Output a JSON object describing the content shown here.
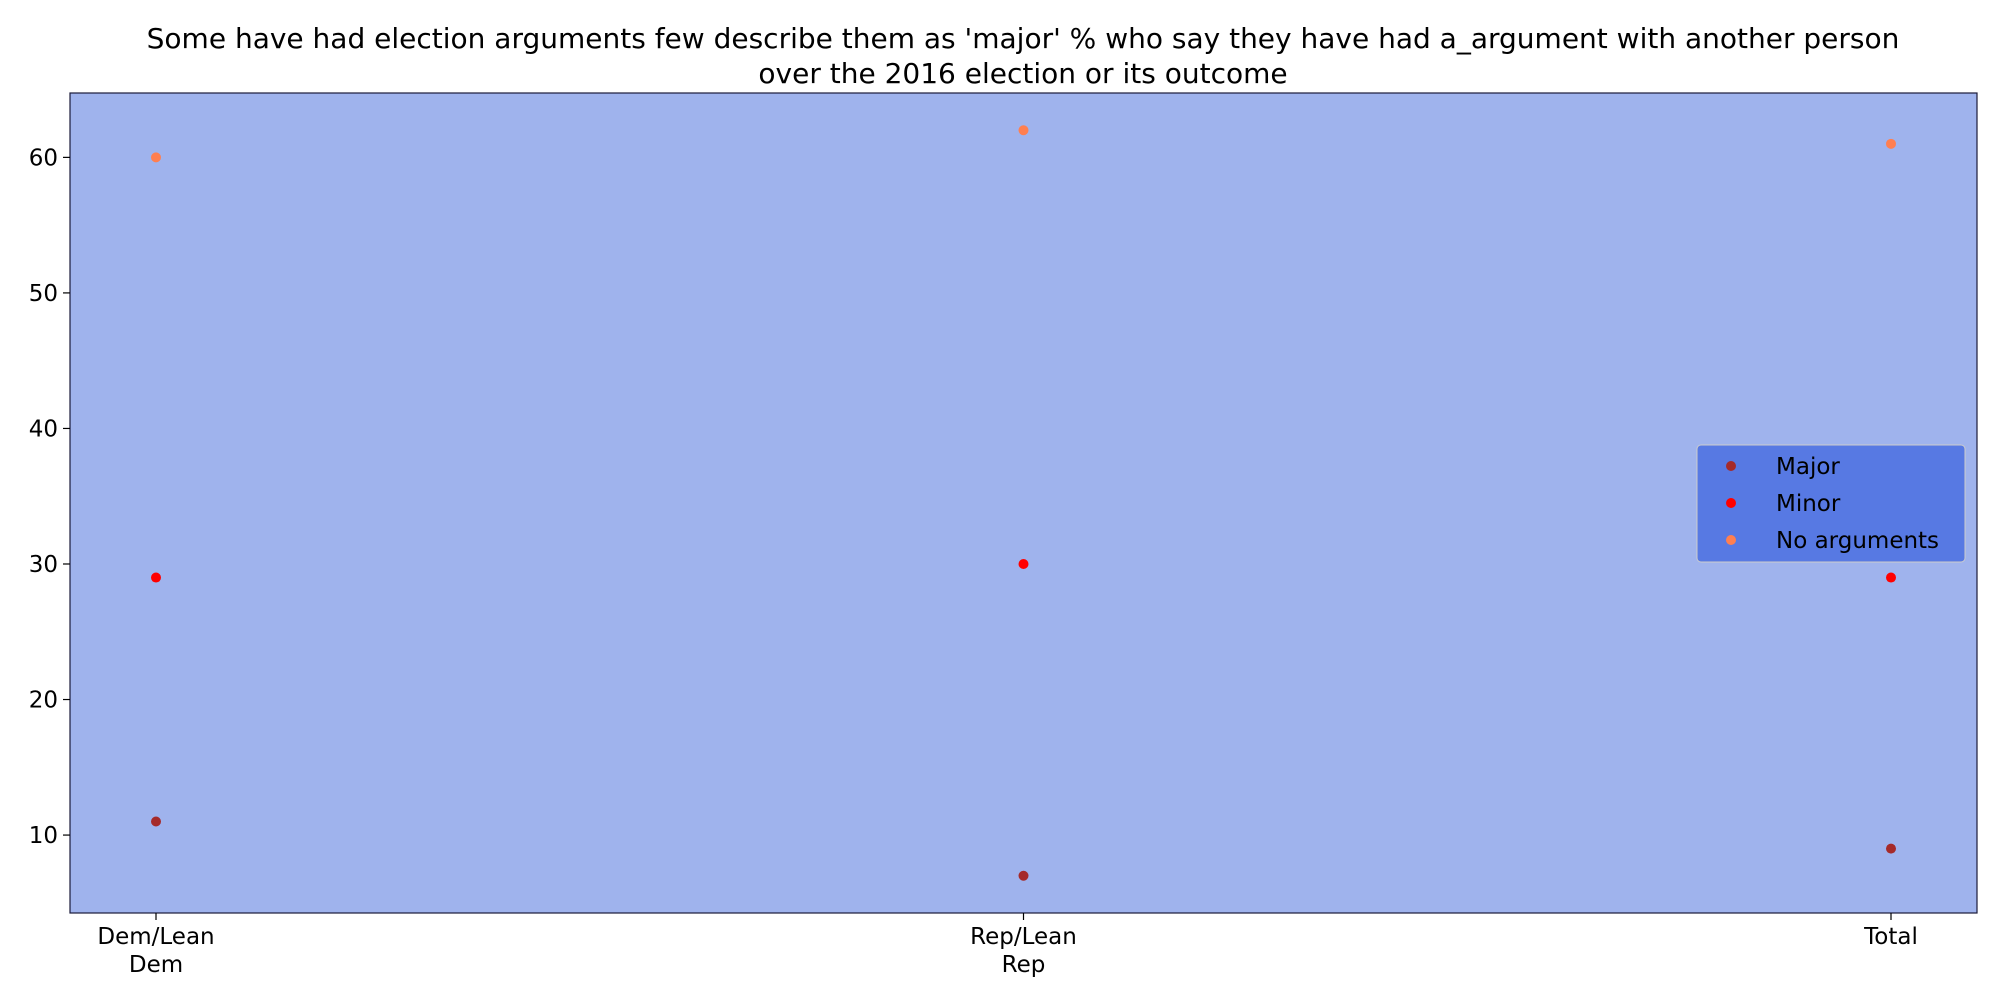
{
  "chart_data": {
    "type": "scatter",
    "title_lines": [
      "Some have had election arguments few describe them as 'major' % who say they have had a_argument with another person",
      "over the 2016 election or its outcome"
    ],
    "xlabel": "",
    "ylabel": "",
    "categories": [
      [
        "Dem/Lean",
        "Dem"
      ],
      [
        "Rep/Lean",
        "Rep"
      ],
      [
        "Total"
      ]
    ],
    "series": [
      {
        "name": "Major",
        "color": "#a52a2a",
        "values": [
          11,
          7,
          9
        ]
      },
      {
        "name": "Minor",
        "color": "#ff0000",
        "values": [
          29,
          30,
          29
        ]
      },
      {
        "name": "No arguments",
        "color": "#ff7f50",
        "values": [
          60,
          62,
          61
        ]
      }
    ],
    "ylim": [
      4.25,
      64.75
    ],
    "yticks": [
      10,
      20,
      30,
      40,
      50,
      60
    ],
    "grid": false,
    "legend_position": "center-right",
    "colors": {
      "plot_background": "#9fb3ed",
      "legend_background": "#5779e3",
      "axis_edge": "#1a1a3a"
    }
  }
}
